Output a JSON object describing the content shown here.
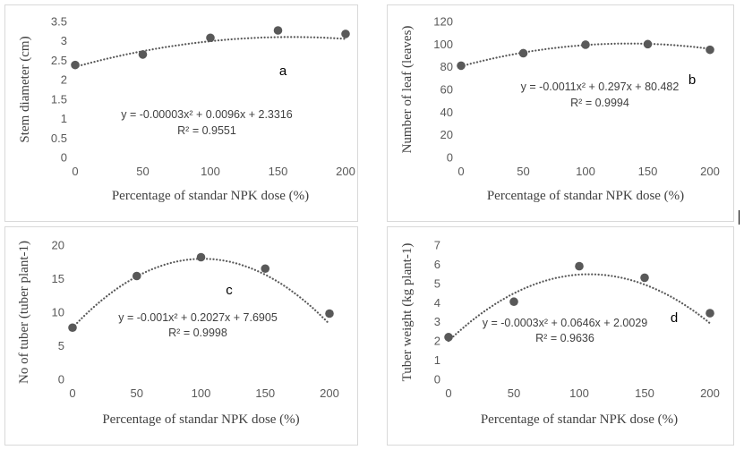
{
  "chart_data": [
    {
      "type": "scatter",
      "panel_letter": "a",
      "xlabel": "Percentage of standar NPK dose (%)",
      "ylabel": "Stem diameter (cm)",
      "x": [
        0,
        50,
        100,
        150,
        200
      ],
      "y": [
        2.38,
        2.65,
        3.08,
        3.27,
        3.18
      ],
      "xlim": [
        0,
        200
      ],
      "ylim": [
        0,
        3.5
      ],
      "xticks": [
        "0",
        "50",
        "100",
        "150",
        "200"
      ],
      "yticks": [
        "0",
        "0.5",
        "1",
        "1.5",
        "2",
        "2.5",
        "3",
        "3.5"
      ],
      "trend": {
        "type": "polynomial",
        "a": -3e-05,
        "b": 0.0096,
        "c": 2.3316
      },
      "equation": "y = -0.00003x² + 0.0096x + 2.3316",
      "r2": "R² = 0.9551",
      "grid": false,
      "marker_color": "#595959"
    },
    {
      "type": "scatter",
      "panel_letter": "b",
      "xlabel": "Percentage of standar NPK dose (%)",
      "ylabel": "Number of leaf (leaves)",
      "x": [
        0,
        50,
        100,
        150,
        200
      ],
      "y": [
        81,
        92,
        99.5,
        100,
        95
      ],
      "xlim": [
        0,
        200
      ],
      "ylim": [
        0,
        120
      ],
      "xticks": [
        "0",
        "50",
        "100",
        "150",
        "200"
      ],
      "yticks": [
        "0",
        "20",
        "40",
        "60",
        "80",
        "100",
        "120"
      ],
      "trend": {
        "type": "polynomial",
        "a": -0.0011,
        "b": 0.297,
        "c": 80.482
      },
      "equation": "y = -0.0011x² + 0.297x + 80.482",
      "r2": "R² = 0.9994",
      "grid": false,
      "marker_color": "#595959"
    },
    {
      "type": "scatter",
      "panel_letter": "c",
      "xlabel": "Percentage of standar NPK dose (%)",
      "ylabel": "No of tuber (tuber plant-1)",
      "x": [
        0,
        50,
        100,
        150,
        200
      ],
      "y": [
        7.7,
        15.4,
        18.2,
        16.5,
        9.8
      ],
      "xlim": [
        0,
        200
      ],
      "ylim": [
        0,
        20
      ],
      "xticks": [
        "0",
        "50",
        "100",
        "150",
        "200"
      ],
      "yticks": [
        "0",
        "5",
        "10",
        "15",
        "20"
      ],
      "trend": {
        "type": "polynomial",
        "a": -0.001,
        "b": 0.2027,
        "c": 7.6905
      },
      "equation": "y = -0.001x² + 0.2027x + 7.6905",
      "r2": "R² = 0.9998",
      "grid": false,
      "marker_color": "#595959"
    },
    {
      "type": "scatter",
      "panel_letter": "d",
      "xlabel": "Percentage of standar NPK dose (%)",
      "ylabel": "Tuber weight (kg plant-1)",
      "x": [
        0,
        50,
        100,
        150,
        200
      ],
      "y": [
        2.2,
        4.05,
        5.9,
        5.3,
        3.45
      ],
      "xlim": [
        0,
        200
      ],
      "ylim": [
        0,
        7
      ],
      "xticks": [
        "0",
        "50",
        "100",
        "150",
        "200"
      ],
      "yticks": [
        "0",
        "1",
        "2",
        "3",
        "4",
        "5",
        "6",
        "7"
      ],
      "trend": {
        "type": "polynomial",
        "a": -0.0003,
        "b": 0.0646,
        "c": 2.0029
      },
      "equation": "y = -0.0003x² + 0.0646x + 2.0029",
      "r2": "R² = 0.9636",
      "grid": false,
      "marker_color": "#595959"
    }
  ]
}
